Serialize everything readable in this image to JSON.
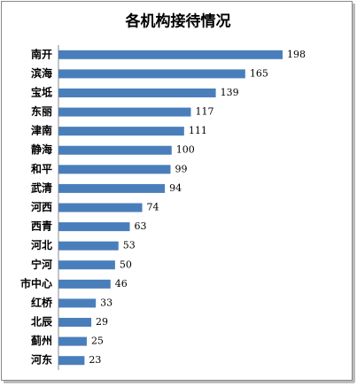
{
  "chart_data": {
    "type": "bar",
    "orientation": "horizontal",
    "title": "各机构接待情况",
    "categories": [
      "南开",
      "滨海",
      "宝坻",
      "东丽",
      "津南",
      "静海",
      "和平",
      "武清",
      "河西",
      "西青",
      "河北",
      "宁河",
      "市中心",
      "红桥",
      "北辰",
      "蓟州",
      "河东"
    ],
    "values": [
      198,
      165,
      139,
      117,
      111,
      100,
      99,
      94,
      74,
      63,
      53,
      50,
      46,
      33,
      29,
      25,
      23
    ],
    "color": "#4a7ebb"
  }
}
